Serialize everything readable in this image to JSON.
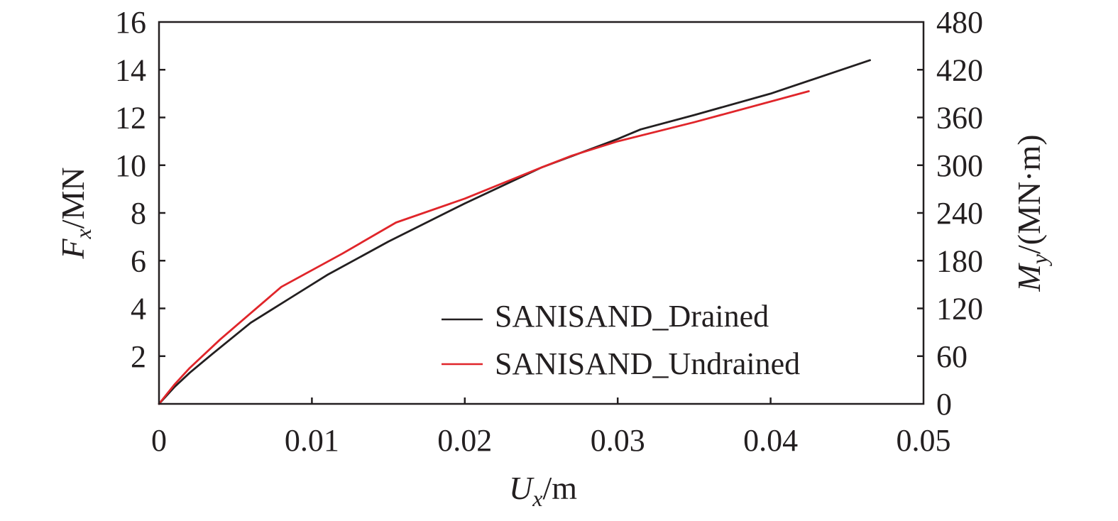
{
  "chart_data": {
    "type": "line",
    "x_label": {
      "main": "U",
      "sub": "x",
      "unit": "/m"
    },
    "y_label_left": {
      "main": "F",
      "sub": "x",
      "unit": "/MN"
    },
    "y_label_right": {
      "main": "M",
      "sub": "y",
      "unit": "/(MN·m)"
    },
    "x_ticks": [
      "0",
      "0.01",
      "0.02",
      "0.03",
      "0.04",
      "0.05"
    ],
    "x_tick_values": [
      0,
      0.01,
      0.02,
      0.03,
      0.04,
      0.05
    ],
    "y_left_ticks": [
      "2",
      "4",
      "6",
      "8",
      "10",
      "12",
      "14",
      "16"
    ],
    "y_left_tick_values": [
      2,
      4,
      6,
      8,
      10,
      12,
      14,
      16
    ],
    "y_right_ticks": [
      "0",
      "60",
      "120",
      "180",
      "240",
      "300",
      "360",
      "420",
      "480"
    ],
    "y_right_tick_values": [
      0,
      60,
      120,
      180,
      240,
      300,
      360,
      420,
      480
    ],
    "xlim": [
      0,
      0.05
    ],
    "ylim_left": [
      0,
      16
    ],
    "ylim_right": [
      0,
      480
    ],
    "grid": false,
    "legend_position": "bottom-right",
    "series": [
      {
        "name": "SANISAND_Drained",
        "color": "#231f20",
        "x": [
          0,
          0.001,
          0.002,
          0.0035,
          0.006,
          0.0085,
          0.011,
          0.015,
          0.02,
          0.025,
          0.03,
          0.0315,
          0.035,
          0.04,
          0.0465
        ],
        "y": [
          0,
          0.7,
          1.3,
          2.1,
          3.4,
          4.4,
          5.4,
          6.8,
          8.4,
          9.9,
          11.1,
          11.5,
          12.1,
          13.0,
          14.4
        ]
      },
      {
        "name": "SANISAND_Undrained",
        "color": "#e0252a",
        "x": [
          0,
          0.001,
          0.002,
          0.004,
          0.006,
          0.008,
          0.01,
          0.012,
          0.0155,
          0.02,
          0.025,
          0.027,
          0.03,
          0.035,
          0.0425
        ],
        "y": [
          0,
          0.8,
          1.5,
          2.7,
          3.8,
          4.9,
          5.6,
          6.3,
          7.6,
          8.6,
          9.9,
          10.4,
          11.0,
          11.8,
          13.1
        ]
      }
    ]
  }
}
